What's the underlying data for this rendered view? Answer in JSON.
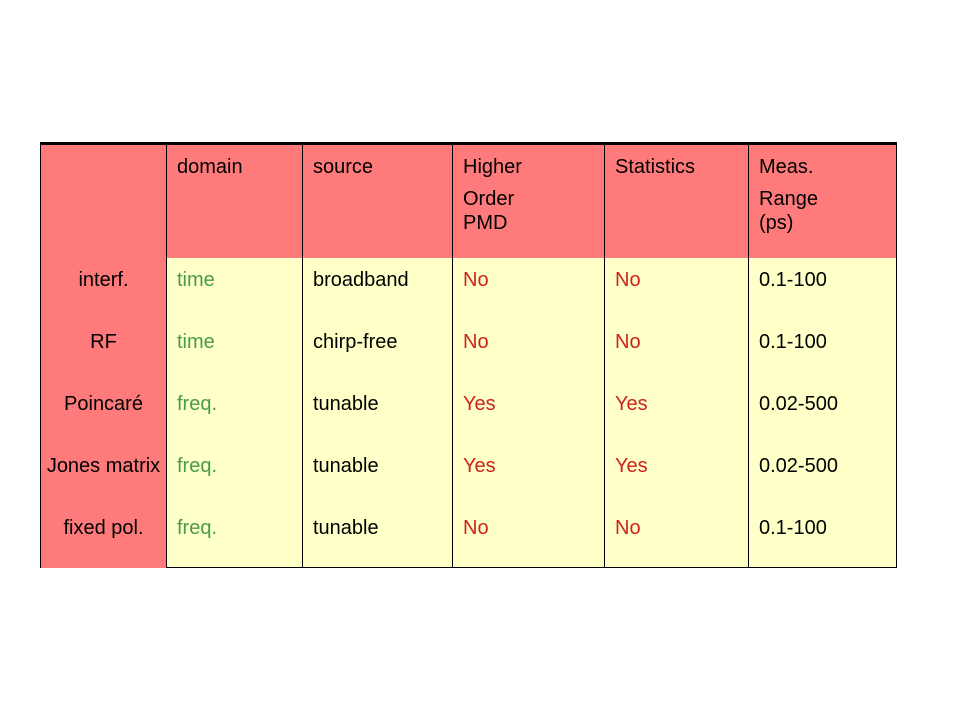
{
  "table": {
    "headers": [
      [
        ""
      ],
      [
        "domain"
      ],
      [
        "source"
      ],
      [
        "Higher",
        "Order",
        "PMD"
      ],
      [
        "Statistics"
      ],
      [
        "Meas.",
        "Range",
        "(ps)"
      ]
    ],
    "rows": [
      {
        "label": "interf.",
        "cells": [
          "time",
          "broadband",
          "No",
          "No",
          "0.1-100"
        ]
      },
      {
        "label": "RF",
        "cells": [
          "time",
          "chirp-free",
          "No",
          "No",
          "0.1-100"
        ]
      },
      {
        "label": "Poincaré",
        "cells": [
          "freq.",
          "tunable",
          "Yes",
          "Yes",
          "0.02-500"
        ]
      },
      {
        "label": "Jones matrix",
        "cells": [
          "freq.",
          "tunable",
          "Yes",
          "Yes",
          "0.02-500"
        ]
      },
      {
        "label": "fixed pol.",
        "cells": [
          "freq.",
          "tunable",
          "No",
          "No",
          "0.1-100"
        ]
      }
    ]
  },
  "colors": {
    "header_bg": "#ff7a7a",
    "cell_bg": "#ffffc8",
    "domain_text": "#4a9b4a",
    "yes_no_text": "#cc2222"
  }
}
